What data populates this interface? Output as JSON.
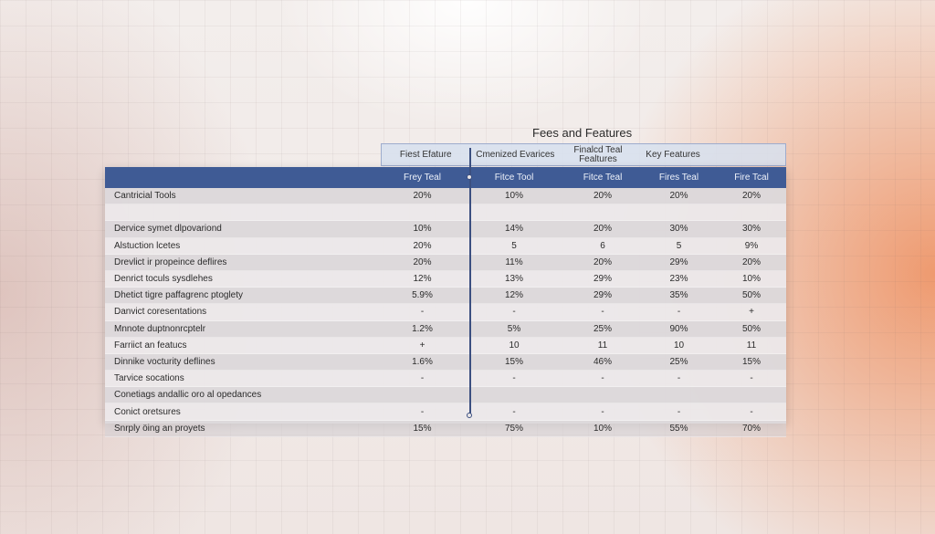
{
  "title": "Fees and Features",
  "group_headers": [
    "Fiest Efature",
    "Cmenized Evarices",
    "Finalcd Teal Fealtures",
    "Key Features",
    ""
  ],
  "columns": [
    "",
    "Frey Teal",
    "Fitce Tool",
    "Fitce Teal",
    "Fires Teal",
    "Fire Tcal"
  ],
  "rows": [
    [
      "Cantricial Tools",
      "20%",
      "10%",
      "20%",
      "20%",
      "20%"
    ],
    [
      "",
      "",
      "",
      "",
      "",
      ""
    ],
    [
      "Dervice symet dlpovariond",
      "10%",
      "14%",
      "20%",
      "30%",
      "30%"
    ],
    [
      "Alstuction lcetes",
      "20%",
      "5",
      "6",
      "5",
      "9%"
    ],
    [
      "Drevlict ir propeince deflires",
      "20%",
      "11%",
      "20%",
      "29%",
      "20%"
    ],
    [
      "Denrict toculs sysdlehes",
      "12%",
      "13%",
      "29%",
      "23%",
      "10%"
    ],
    [
      "Dhetict tigre paffagrenc ptoglety",
      "5.9%",
      "12%",
      "29%",
      "35%",
      "50%"
    ],
    [
      "Danvict coresentations",
      "-",
      "-",
      "-",
      "-",
      "+"
    ],
    [
      "Mnnote duptnonrcptelr",
      "1.2%",
      "5%",
      "25%",
      "90%",
      "50%"
    ],
    [
      "Farriict an featucs",
      "+",
      "10",
      "11",
      "10",
      "11"
    ],
    [
      "Dinnike vocturity deflines",
      "1.6%",
      "15%",
      "46%",
      "25%",
      "15%"
    ],
    [
      "Tarvice socations",
      "-",
      "-",
      "-",
      "-",
      "-"
    ],
    [
      "Conetiags andallic oro al opedances",
      "",
      "",
      "",
      "",
      ""
    ],
    [
      "Conict oretsures",
      "-",
      "-",
      "-",
      "-",
      "-"
    ],
    [
      "Snrply öing an proyets",
      "15%",
      "75%",
      "10%",
      "55%",
      "70%"
    ]
  ]
}
